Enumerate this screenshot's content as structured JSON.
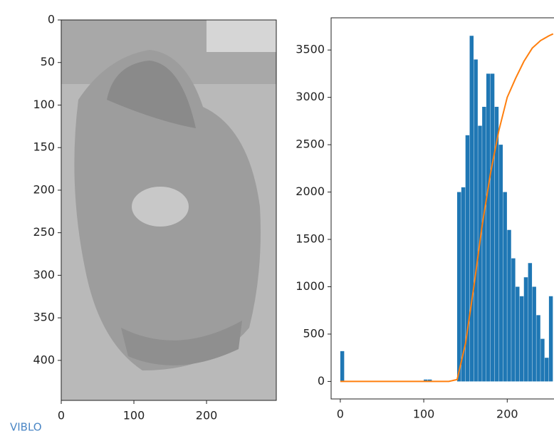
{
  "chart_data": [
    {
      "type": "image",
      "xlim": [
        0,
        296
      ],
      "ylim": [
        447,
        0
      ],
      "xticks": [
        0,
        100,
        200
      ],
      "yticks": [
        0,
        50,
        100,
        150,
        200,
        250,
        300,
        350,
        400
      ],
      "watermark": "VIBLO"
    },
    {
      "type": "histogram",
      "color": "#1f77b4",
      "bins": [
        0,
        5,
        10,
        15,
        20,
        25,
        30,
        35,
        40,
        45,
        50,
        55,
        60,
        65,
        70,
        75,
        80,
        85,
        90,
        95,
        100,
        105,
        110,
        115,
        120,
        125,
        130,
        135,
        140,
        145,
        150,
        155,
        160,
        165,
        170,
        175,
        180,
        185,
        190,
        195,
        200,
        205,
        210,
        215,
        220,
        225,
        230,
        235,
        240,
        245,
        250,
        255
      ],
      "values": [
        320,
        0,
        0,
        0,
        0,
        0,
        0,
        0,
        0,
        0,
        0,
        0,
        0,
        0,
        0,
        0,
        0,
        0,
        0,
        0,
        20,
        20,
        0,
        0,
        0,
        0,
        0,
        0,
        2000,
        2050,
        2600,
        3650,
        3400,
        2700,
        2900,
        3250,
        3250,
        2900,
        2500,
        2000,
        1600,
        1300,
        1000,
        900,
        1100,
        1250,
        1000,
        700,
        450,
        250,
        900
      ],
      "overlay": {
        "type": "line",
        "color": "#ff7f0e",
        "x": [
          0,
          10,
          20,
          30,
          40,
          50,
          60,
          70,
          80,
          90,
          100,
          110,
          120,
          130,
          140,
          150,
          160,
          170,
          180,
          190,
          200,
          210,
          220,
          230,
          240,
          250,
          255
        ],
        "values": [
          0,
          0,
          0,
          0,
          0,
          0,
          0,
          0,
          0,
          0,
          0,
          0,
          0,
          0,
          20,
          400,
          1000,
          1650,
          2200,
          2650,
          3000,
          3200,
          3380,
          3520,
          3600,
          3650,
          3670
        ]
      },
      "xlim": [
        -11,
        268
      ],
      "ylim": [
        -185,
        3840
      ],
      "xticks": [
        0,
        100,
        200
      ],
      "yticks": [
        0,
        500,
        1000,
        1500,
        2000,
        2500,
        3000,
        3500
      ]
    }
  ]
}
